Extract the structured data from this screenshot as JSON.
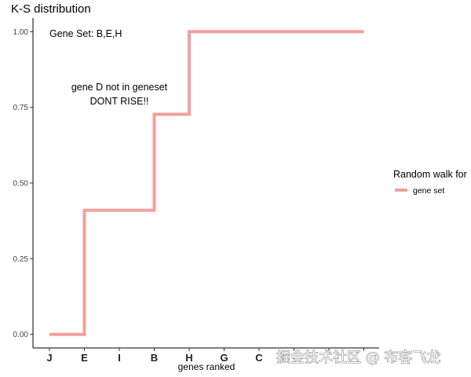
{
  "chart_data": {
    "type": "line",
    "step": true,
    "title": "K-S distribution",
    "xlabel": "genes ranked",
    "ylabel": "",
    "categories": [
      "J",
      "E",
      "I",
      "B",
      "H",
      "G",
      "C",
      "",
      "",
      ""
    ],
    "series": [
      {
        "name": "gene set",
        "color": "#f4a09c",
        "points": [
          {
            "x": 0,
            "y": 0.0
          },
          {
            "x": 1,
            "y": 0.0
          },
          {
            "x": 1,
            "y": 0.41
          },
          {
            "x": 3,
            "y": 0.41
          },
          {
            "x": 3,
            "y": 0.727
          },
          {
            "x": 4,
            "y": 0.727
          },
          {
            "x": 4,
            "y": 1.0
          },
          {
            "x": 9,
            "y": 1.0
          }
        ]
      }
    ],
    "yticks": [
      "0.00",
      "0.25",
      "0.50",
      "0.75",
      "1.00"
    ],
    "ylim": [
      -0.045,
      1.045
    ],
    "grid": false,
    "legend": {
      "title": "Random walk for",
      "position": "right"
    },
    "annotations": {
      "gene_set": "Gene Set: B,E,H",
      "note_line1": "gene D  not in geneset",
      "note_line2": "DONT RISE!!"
    }
  },
  "watermark": "掘金技术社区 @ 布客飞龙"
}
